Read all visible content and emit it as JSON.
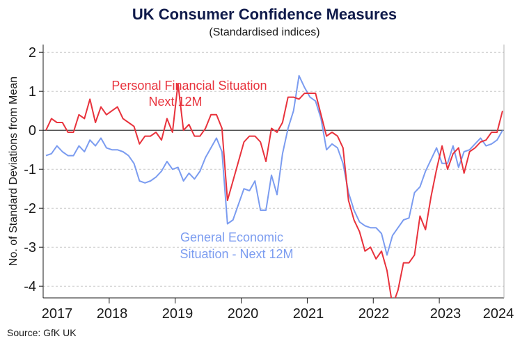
{
  "chart_data": {
    "type": "line",
    "title": "UK Consumer Confidence Measures",
    "subtitle": "(Standardised indices)",
    "ylabel": "No. of Standard Deviations from Mean",
    "xlabel": "",
    "source": "Source: GfK UK",
    "ylim": [
      -4.3,
      2.2
    ],
    "yticks": [
      2,
      1,
      0,
      -1,
      -2,
      -3,
      -4
    ],
    "ytick_labels": [
      "2",
      "1",
      "0",
      "-1",
      "-2",
      "-3",
      "-4"
    ],
    "xtick_labels": [
      "2017",
      "2018",
      "2019",
      "2020",
      "2021",
      "2022",
      "2023",
      "2024"
    ],
    "grid": "horizontal-dashed",
    "colors": {
      "personal": "#e8323c",
      "general": "#7b9cf0",
      "zero_line": "#1a1a1a"
    },
    "series": [
      {
        "name": "Personal Financial Situation Next 12M",
        "label_lines": [
          "Personal Financial Situation",
          "Next 12M"
        ],
        "color": "#e8323c",
        "values": [
          0.0,
          0.3,
          0.2,
          0.2,
          -0.05,
          -0.05,
          0.4,
          0.3,
          0.8,
          0.2,
          0.6,
          0.4,
          0.5,
          0.6,
          0.3,
          0.2,
          0.1,
          -0.35,
          -0.15,
          -0.15,
          -0.05,
          -0.25,
          0.3,
          -0.05,
          1.2,
          0.0,
          0.15,
          -0.15,
          -0.15,
          0.05,
          0.4,
          0.4,
          0.05,
          -1.8,
          -1.3,
          -0.8,
          -0.3,
          -0.15,
          -0.15,
          -0.3,
          -0.8,
          0.05,
          -0.05,
          0.2,
          0.85,
          0.85,
          0.8,
          0.95,
          0.95,
          0.95,
          0.4,
          -0.15,
          -0.05,
          -0.15,
          -0.45,
          -1.8,
          -2.3,
          -2.6,
          -3.1,
          -3.0,
          -3.3,
          -3.1,
          -3.6,
          -4.5,
          -4.1,
          -3.4,
          -3.4,
          -3.2,
          -2.2,
          -2.55,
          -1.7,
          -1.0,
          -0.4,
          -1.0,
          -0.6,
          -0.45,
          -1.1,
          -0.55,
          -0.45,
          -0.3,
          -0.25,
          -0.05,
          -0.05,
          0.5
        ]
      },
      {
        "name": "General Economic Situation - Next 12M",
        "label_lines": [
          "General Economic",
          "Situation - Next 12M"
        ],
        "color": "#7b9cf0",
        "values": [
          -0.65,
          -0.6,
          -0.4,
          -0.55,
          -0.65,
          -0.65,
          -0.4,
          -0.55,
          -0.25,
          -0.4,
          -0.2,
          -0.45,
          -0.5,
          -0.5,
          -0.55,
          -0.65,
          -0.85,
          -1.3,
          -1.35,
          -1.3,
          -1.2,
          -1.05,
          -0.8,
          -1.0,
          -0.95,
          -1.3,
          -1.1,
          -1.25,
          -1.05,
          -0.7,
          -0.45,
          -0.2,
          -0.55,
          -2.4,
          -2.3,
          -1.9,
          -1.5,
          -1.55,
          -1.3,
          -2.05,
          -2.05,
          -1.15,
          -1.65,
          -0.6,
          0.05,
          0.5,
          1.4,
          1.1,
          0.85,
          0.75,
          0.3,
          -0.5,
          -0.35,
          -0.45,
          -0.85,
          -1.6,
          -2.05,
          -2.35,
          -2.45,
          -2.5,
          -2.5,
          -2.65,
          -3.2,
          -2.7,
          -2.5,
          -2.3,
          -2.25,
          -1.6,
          -1.45,
          -1.05,
          -0.75,
          -0.45,
          -0.85,
          -0.85,
          -0.4,
          -0.95,
          -0.55,
          -0.5,
          -0.35,
          -0.2,
          -0.4,
          -0.35,
          -0.25,
          0.0
        ]
      }
    ]
  }
}
